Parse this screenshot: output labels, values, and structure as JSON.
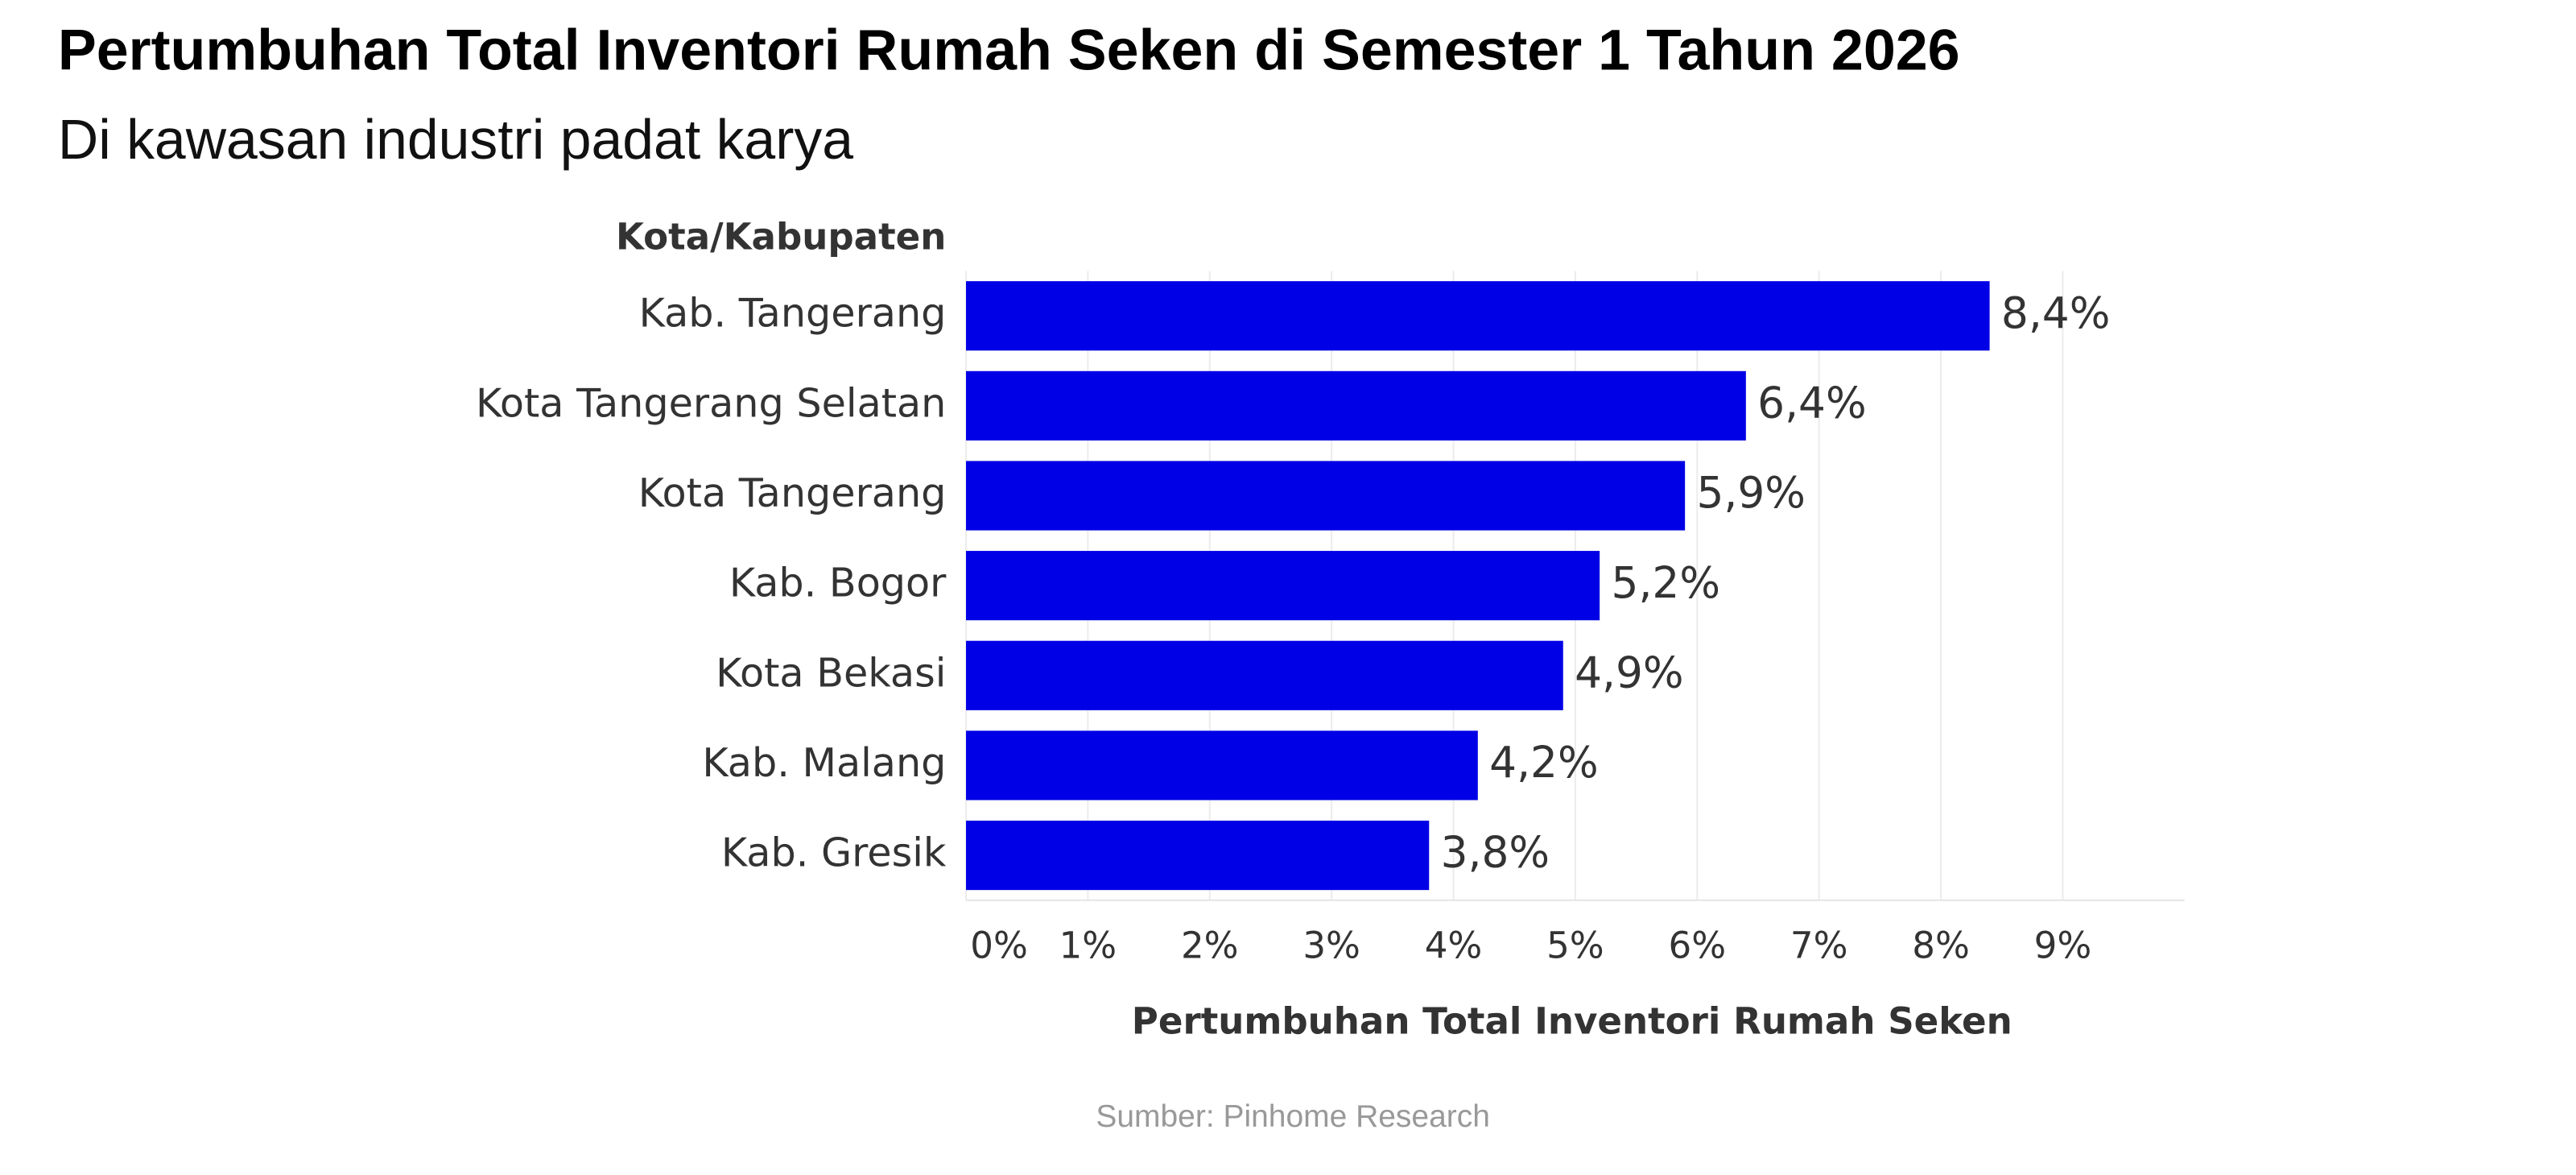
{
  "chart_data": {
    "type": "bar",
    "orientation": "horizontal",
    "title": "Pertumbuhan Total Inventori Rumah Seken di Semester 1 Tahun 2026",
    "subtitle": "Di kawasan industri padat karya",
    "y_label": "Kota/Kabupaten",
    "x_label": "Pertumbuhan Total Inventori Rumah Seken",
    "source": "Sumber: Pinhome Research",
    "categories": [
      "Kab. Tangerang",
      "Kota Tangerang Selatan",
      "Kota Tangerang",
      "Kab. Bogor",
      "Kota Bekasi",
      "Kab. Malang",
      "Kab. Gresik"
    ],
    "values": [
      8.4,
      6.4,
      5.9,
      5.2,
      4.9,
      4.2,
      3.8
    ],
    "value_labels": [
      "8,4%",
      "6,4%",
      "5,9%",
      "5,2%",
      "4,9%",
      "4,2%",
      "3,8%"
    ],
    "color": "#0000e6",
    "xlim": [
      0,
      10
    ],
    "xticks": [
      {
        "value": 0,
        "label": "0%"
      },
      {
        "value": 1,
        "label": "1%"
      },
      {
        "value": 2,
        "label": "2%"
      },
      {
        "value": 3,
        "label": "3%"
      },
      {
        "value": 4,
        "label": "4%"
      },
      {
        "value": 5,
        "label": "5%"
      },
      {
        "value": 6,
        "label": "6%"
      },
      {
        "value": 7,
        "label": "7%"
      },
      {
        "value": 8,
        "label": "8%"
      },
      {
        "value": 9,
        "label": "9%"
      }
    ],
    "grid": true
  }
}
